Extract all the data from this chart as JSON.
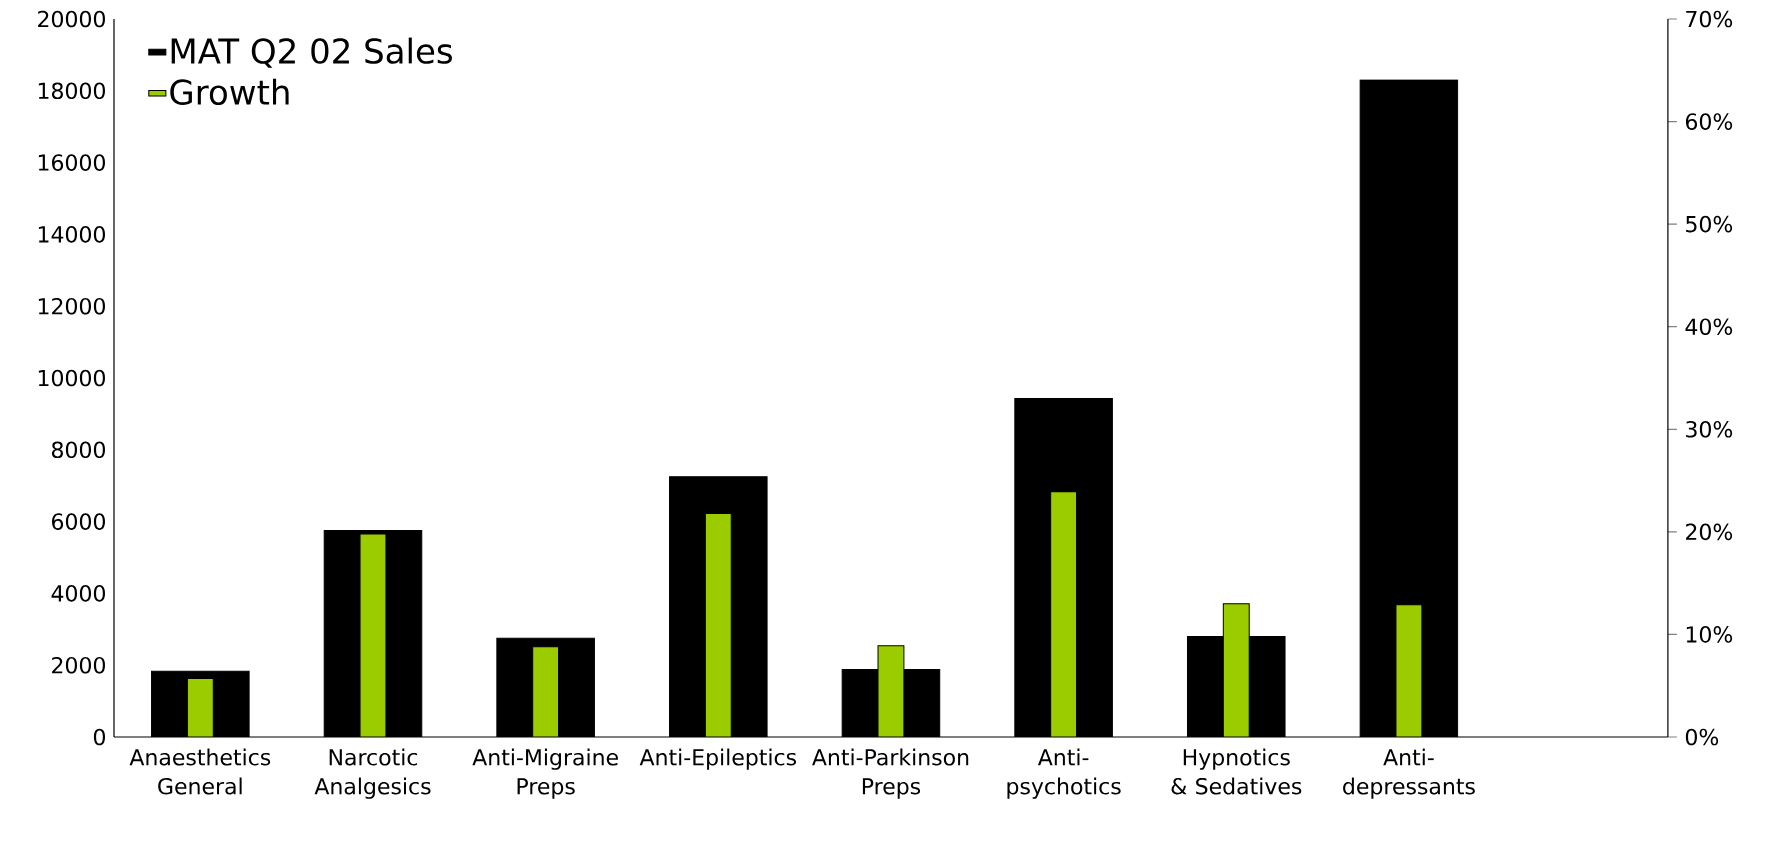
{
  "chart_data": {
    "type": "bar",
    "categories": [
      "Anaesthetics General",
      "Narcotic Analgesics",
      "Anti-Migraine Preps",
      "Anti-Epileptics",
      "Anti-Parkinson Preps",
      "Anti-psychotics",
      "Hypnotics & Sedatives",
      "Anti-depressants",
      null
    ],
    "series": [
      {
        "name": "MAT Q2 02 Sales",
        "color": "#000000",
        "values": [
          1830,
          5750,
          2750,
          7250,
          1880,
          9430,
          2800,
          18300,
          null
        ]
      },
      {
        "name": "Growth",
        "color": "#9bcc00",
        "axis": "y2",
        "values": [
          5.7,
          19.8,
          8.8,
          21.8,
          8.9,
          23.9,
          13.0,
          12.9,
          null
        ]
      }
    ],
    "ylim": [
      0,
      20000
    ],
    "yticks": [
      0,
      2000,
      4000,
      6000,
      8000,
      10000,
      12000,
      14000,
      16000,
      18000,
      20000
    ],
    "y2lim": [
      0,
      70
    ],
    "y2ticks": [
      {
        "value": 0,
        "label": "0%"
      },
      {
        "value": 10,
        "label": "10%"
      },
      {
        "value": 20,
        "label": "20%"
      },
      {
        "value": 30,
        "label": "30%"
      },
      {
        "value": 40,
        "label": "40%"
      },
      {
        "value": 50,
        "label": "50%"
      },
      {
        "value": 60,
        "label": "60%"
      },
      {
        "value": 70,
        "label": "70%"
      }
    ],
    "legend": "top left"
  }
}
